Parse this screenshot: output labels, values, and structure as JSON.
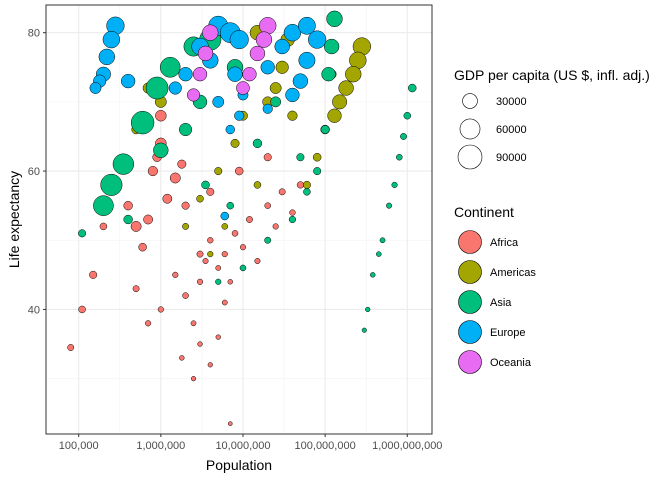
{
  "chart_data": {
    "type": "scatter",
    "title": "",
    "xlabel": "Population",
    "ylabel": "Life expectancy",
    "x_scale": "log10",
    "xlim": [
      40000,
      2000000000
    ],
    "ylim": [
      22,
      84
    ],
    "x_ticks": [
      {
        "value": 100000,
        "label": "100,000"
      },
      {
        "value": 1000000,
        "label": "1,000,000"
      },
      {
        "value": 10000000,
        "label": "10,000,000"
      },
      {
        "value": 100000000,
        "label": "100,000,000"
      },
      {
        "value": 1000000000,
        "label": "1,000,000,000"
      }
    ],
    "y_ticks": [
      {
        "value": 40,
        "label": "40"
      },
      {
        "value": 60,
        "label": "60"
      },
      {
        "value": 80,
        "label": "80"
      }
    ],
    "grid": true,
    "size_legend": {
      "title": "GDP per capita (US $, infl. adj.)",
      "entries": [
        {
          "value": 30000,
          "label": "30000"
        },
        {
          "value": 60000,
          "label": "60000"
        },
        {
          "value": 90000,
          "label": "90000"
        }
      ]
    },
    "color_legend": {
      "title": "Continent",
      "entries": [
        {
          "name": "Africa",
          "color": "#F8766D"
        },
        {
          "name": "Americas",
          "color": "#A3A500"
        },
        {
          "name": "Asia",
          "color": "#00BF7D"
        },
        {
          "name": "Europe",
          "color": "#00B0F6"
        },
        {
          "name": "Oceania",
          "color": "#E76BF3"
        }
      ]
    },
    "legend_position": "right",
    "series": [
      {
        "name": "Africa",
        "color": "#F8766D",
        "points": [
          {
            "x": 80000,
            "y": 34.5,
            "gdp": 3000
          },
          {
            "x": 110000,
            "y": 40,
            "gdp": 4000
          },
          {
            "x": 150000,
            "y": 45,
            "gdp": 5000
          },
          {
            "x": 200000,
            "y": 52,
            "gdp": 4000
          },
          {
            "x": 300000,
            "y": 58,
            "gdp": 6000
          },
          {
            "x": 400000,
            "y": 55,
            "gdp": 8000
          },
          {
            "x": 500000,
            "y": 52,
            "gdp": 12000
          },
          {
            "x": 600000,
            "y": 49,
            "gdp": 6000
          },
          {
            "x": 700000,
            "y": 53,
            "gdp": 9000
          },
          {
            "x": 800000,
            "y": 60,
            "gdp": 10000
          },
          {
            "x": 900000,
            "y": 62,
            "gdp": 8000
          },
          {
            "x": 1000000,
            "y": 64,
            "gdp": 14000
          },
          {
            "x": 1200000,
            "y": 56,
            "gdp": 9000
          },
          {
            "x": 1500000,
            "y": 59,
            "gdp": 12000
          },
          {
            "x": 1800000,
            "y": 61,
            "gdp": 7000
          },
          {
            "x": 500000,
            "y": 43,
            "gdp": 3000
          },
          {
            "x": 700000,
            "y": 38,
            "gdp": 2000
          },
          {
            "x": 1000000,
            "y": 40,
            "gdp": 2000
          },
          {
            "x": 1500000,
            "y": 45,
            "gdp": 2000
          },
          {
            "x": 2000000,
            "y": 42,
            "gdp": 2500
          },
          {
            "x": 2500000,
            "y": 38,
            "gdp": 1500
          },
          {
            "x": 3000000,
            "y": 44,
            "gdp": 2000
          },
          {
            "x": 3500000,
            "y": 47,
            "gdp": 1800
          },
          {
            "x": 4000000,
            "y": 50,
            "gdp": 2200
          },
          {
            "x": 5000000,
            "y": 46,
            "gdp": 1500
          },
          {
            "x": 6000000,
            "y": 48,
            "gdp": 2000
          },
          {
            "x": 7000000,
            "y": 44,
            "gdp": 1200
          },
          {
            "x": 8000000,
            "y": 51,
            "gdp": 2500
          },
          {
            "x": 10000000,
            "y": 49,
            "gdp": 2000
          },
          {
            "x": 12000000,
            "y": 53,
            "gdp": 3000
          },
          {
            "x": 15000000,
            "y": 47,
            "gdp": 1800
          },
          {
            "x": 20000000,
            "y": 55,
            "gdp": 2500
          },
          {
            "x": 25000000,
            "y": 52,
            "gdp": 2000
          },
          {
            "x": 30000000,
            "y": 57,
            "gdp": 3000
          },
          {
            "x": 40000000,
            "y": 54,
            "gdp": 2200
          },
          {
            "x": 50000000,
            "y": 58,
            "gdp": 3500
          },
          {
            "x": 3000000,
            "y": 35,
            "gdp": 1200
          },
          {
            "x": 4000000,
            "y": 32,
            "gdp": 1000
          },
          {
            "x": 5000000,
            "y": 36,
            "gdp": 1100
          },
          {
            "x": 6000000,
            "y": 41,
            "gdp": 1500
          },
          {
            "x": 2500000,
            "y": 30,
            "gdp": 1000
          },
          {
            "x": 1800000,
            "y": 33,
            "gdp": 1200
          },
          {
            "x": 7000000,
            "y": 23.5,
            "gdp": 500
          },
          {
            "x": 3000000,
            "y": 48,
            "gdp": 3000
          },
          {
            "x": 2000000,
            "y": 55,
            "gdp": 5000
          },
          {
            "x": 1000000,
            "y": 68,
            "gdp": 14000
          },
          {
            "x": 9000000,
            "y": 60,
            "gdp": 6000
          },
          {
            "x": 20000000,
            "y": 62,
            "gdp": 5000
          },
          {
            "x": 1500000,
            "y": 72,
            "gdp": 9000
          },
          {
            "x": 4000000,
            "y": 57,
            "gdp": 5000
          }
        ]
      },
      {
        "name": "Americas",
        "color": "#A3A500",
        "points": [
          {
            "x": 280000000,
            "y": 78,
            "gdp": 45000
          },
          {
            "x": 250000000,
            "y": 76,
            "gdp": 40000
          },
          {
            "x": 220000000,
            "y": 74,
            "gdp": 35000
          },
          {
            "x": 180000000,
            "y": 72,
            "gdp": 30000
          },
          {
            "x": 150000000,
            "y": 70,
            "gdp": 28000
          },
          {
            "x": 130000000,
            "y": 68,
            "gdp": 25000
          },
          {
            "x": 120000000,
            "y": 74,
            "gdp": 9000
          },
          {
            "x": 100000000,
            "y": 66,
            "gdp": 8000
          },
          {
            "x": 80000000,
            "y": 62,
            "gdp": 6000
          },
          {
            "x": 60000000,
            "y": 58,
            "gdp": 5000
          },
          {
            "x": 30000000,
            "y": 75,
            "gdp": 20000
          },
          {
            "x": 25000000,
            "y": 72,
            "gdp": 15000
          },
          {
            "x": 20000000,
            "y": 70,
            "gdp": 12000
          },
          {
            "x": 10000000,
            "y": 68,
            "gdp": 9000
          },
          {
            "x": 8000000,
            "y": 64,
            "gdp": 7000
          },
          {
            "x": 5000000,
            "y": 60,
            "gdp": 5000
          },
          {
            "x": 3000000,
            "y": 56,
            "gdp": 4000
          },
          {
            "x": 2000000,
            "y": 52,
            "gdp": 3000
          },
          {
            "x": 1000000,
            "y": 70,
            "gdp": 15000
          },
          {
            "x": 500000,
            "y": 66,
            "gdp": 8000
          },
          {
            "x": 700000,
            "y": 72,
            "gdp": 12000
          },
          {
            "x": 6000000,
            "y": 52,
            "gdp": 2500
          },
          {
            "x": 4000000,
            "y": 48,
            "gdp": 2000
          },
          {
            "x": 15000000,
            "y": 58,
            "gdp": 4000
          },
          {
            "x": 40000000,
            "y": 68,
            "gdp": 10000
          },
          {
            "x": 35000000,
            "y": 79,
            "gdp": 25000
          },
          {
            "x": 15000000,
            "y": 80,
            "gdp": 30000
          }
        ]
      },
      {
        "name": "Asia",
        "color": "#00BF7D",
        "points": [
          {
            "x": 1150000000,
            "y": 72,
            "gdp": 6000
          },
          {
            "x": 1000000000,
            "y": 68,
            "gdp": 4000
          },
          {
            "x": 900000000,
            "y": 65,
            "gdp": 3000
          },
          {
            "x": 800000000,
            "y": 62,
            "gdp": 2500
          },
          {
            "x": 700000000,
            "y": 58,
            "gdp": 2000
          },
          {
            "x": 600000000,
            "y": 55,
            "gdp": 1800
          },
          {
            "x": 500000000,
            "y": 50,
            "gdp": 1500
          },
          {
            "x": 450000000,
            "y": 48,
            "gdp": 1300
          },
          {
            "x": 380000000,
            "y": 45,
            "gdp": 1200
          },
          {
            "x": 330000000,
            "y": 40,
            "gdp": 1000
          },
          {
            "x": 300000000,
            "y": 37,
            "gdp": 900
          },
          {
            "x": 130000000,
            "y": 82,
            "gdp": 35000
          },
          {
            "x": 120000000,
            "y": 78,
            "gdp": 30000
          },
          {
            "x": 110000000,
            "y": 74,
            "gdp": 25000
          },
          {
            "x": 100000000,
            "y": 66,
            "gdp": 7000
          },
          {
            "x": 80000000,
            "y": 60,
            "gdp": 5000
          },
          {
            "x": 60000000,
            "y": 57,
            "gdp": 4000
          },
          {
            "x": 40000000,
            "y": 53,
            "gdp": 3500
          },
          {
            "x": 20000000,
            "y": 50,
            "gdp": 3000
          },
          {
            "x": 10000000,
            "y": 46,
            "gdp": 2500
          },
          {
            "x": 5000000,
            "y": 44,
            "gdp": 2000
          },
          {
            "x": 200000,
            "y": 55,
            "gdp": 60000
          },
          {
            "x": 250000,
            "y": 58,
            "gdp": 70000
          },
          {
            "x": 350000,
            "y": 61,
            "gdp": 65000
          },
          {
            "x": 600000,
            "y": 67,
            "gdp": 80000
          },
          {
            "x": 900000,
            "y": 72,
            "gdp": 75000
          },
          {
            "x": 1300000,
            "y": 75,
            "gdp": 60000
          },
          {
            "x": 2500000,
            "y": 78,
            "gdp": 55000
          },
          {
            "x": 4000000,
            "y": 79,
            "gdp": 70000
          },
          {
            "x": 1000000,
            "y": 63,
            "gdp": 30000
          },
          {
            "x": 2000000,
            "y": 66,
            "gdp": 20000
          },
          {
            "x": 3000000,
            "y": 70,
            "gdp": 25000
          },
          {
            "x": 15000000,
            "y": 64,
            "gdp": 8000
          },
          {
            "x": 25000000,
            "y": 70,
            "gdp": 12000
          },
          {
            "x": 7000000,
            "y": 55,
            "gdp": 4000
          },
          {
            "x": 8000000,
            "y": 75,
            "gdp": 35000
          },
          {
            "x": 110000,
            "y": 51,
            "gdp": 5000
          },
          {
            "x": 400000,
            "y": 53,
            "gdp": 8000
          },
          {
            "x": 3500000,
            "y": 58,
            "gdp": 6000
          },
          {
            "x": 50000000,
            "y": 62,
            "gdp": 5000
          }
        ]
      },
      {
        "name": "Europe",
        "color": "#00B0F6",
        "points": [
          {
            "x": 280000,
            "y": 81,
            "gdp": 45000
          },
          {
            "x": 250000,
            "y": 79,
            "gdp": 40000
          },
          {
            "x": 220000,
            "y": 76.5,
            "gdp": 35000
          },
          {
            "x": 200000,
            "y": 74,
            "gdp": 28000
          },
          {
            "x": 180000,
            "y": 73,
            "gdp": 20000
          },
          {
            "x": 160000,
            "y": 72,
            "gdp": 15000
          },
          {
            "x": 5000000,
            "y": 81,
            "gdp": 55000
          },
          {
            "x": 7000000,
            "y": 80,
            "gdp": 60000
          },
          {
            "x": 9000000,
            "y": 79,
            "gdp": 50000
          },
          {
            "x": 40000000,
            "y": 80,
            "gdp": 40000
          },
          {
            "x": 60000000,
            "y": 81,
            "gdp": 42000
          },
          {
            "x": 80000000,
            "y": 79,
            "gdp": 45000
          },
          {
            "x": 60000000,
            "y": 76,
            "gdp": 38000
          },
          {
            "x": 50000000,
            "y": 73,
            "gdp": 30000
          },
          {
            "x": 40000000,
            "y": 71,
            "gdp": 25000
          },
          {
            "x": 3000000,
            "y": 78,
            "gdp": 40000
          },
          {
            "x": 4000000,
            "y": 76,
            "gdp": 35000
          },
          {
            "x": 8000000,
            "y": 74,
            "gdp": 30000
          },
          {
            "x": 10000000,
            "y": 72,
            "gdp": 20000
          },
          {
            "x": 20000000,
            "y": 75,
            "gdp": 25000
          },
          {
            "x": 30000000,
            "y": 78,
            "gdp": 30000
          },
          {
            "x": 2000000,
            "y": 74,
            "gdp": 25000
          },
          {
            "x": 1500000,
            "y": 72,
            "gdp": 20000
          },
          {
            "x": 5000000,
            "y": 70,
            "gdp": 15000
          },
          {
            "x": 9000000,
            "y": 68,
            "gdp": 10000
          },
          {
            "x": 10000000,
            "y": 71,
            "gdp": 12000
          },
          {
            "x": 20000000,
            "y": 69,
            "gdp": 10000
          },
          {
            "x": 6000000,
            "y": 53.5,
            "gdp": 6000
          },
          {
            "x": 7000000,
            "y": 66,
            "gdp": 8000
          },
          {
            "x": 400000,
            "y": 73,
            "gdp": 25000
          }
        ]
      },
      {
        "name": "Oceania",
        "color": "#E76BF3",
        "points": [
          {
            "x": 20000000,
            "y": 81,
            "gdp": 40000
          },
          {
            "x": 18000000,
            "y": 79,
            "gdp": 35000
          },
          {
            "x": 15000000,
            "y": 77,
            "gdp": 30000
          },
          {
            "x": 12000000,
            "y": 74,
            "gdp": 25000
          },
          {
            "x": 10000000,
            "y": 72,
            "gdp": 22000
          },
          {
            "x": 4000000,
            "y": 80,
            "gdp": 35000
          },
          {
            "x": 3500000,
            "y": 77,
            "gdp": 30000
          },
          {
            "x": 3000000,
            "y": 74,
            "gdp": 25000
          },
          {
            "x": 2500000,
            "y": 71,
            "gdp": 20000
          }
        ]
      }
    ]
  }
}
